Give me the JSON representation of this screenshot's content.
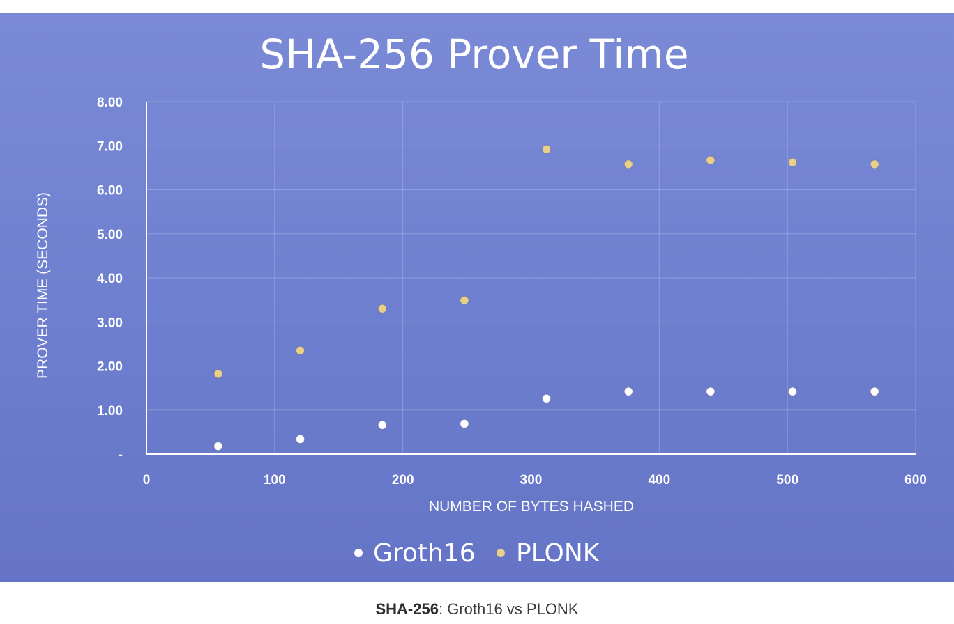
{
  "chart_data": {
    "type": "scatter",
    "title": "SHA-256 Prover Time",
    "xlabel": "NUMBER OF BYTES HASHED",
    "ylabel": "PROVER TIME (SECONDS)",
    "xlim": [
      0,
      600
    ],
    "ylim": [
      0,
      8
    ],
    "x_ticks": [
      "0",
      "100",
      "200",
      "300",
      "400",
      "500",
      "600"
    ],
    "y_ticks": [
      "-",
      "1.00",
      "2.00",
      "3.00",
      "4.00",
      "5.00",
      "6.00",
      "7.00",
      "8.00"
    ],
    "grid": true,
    "legend_position": "bottom",
    "series": [
      {
        "name": "Groth16",
        "color": "#ffffff",
        "x": [
          56,
          120,
          184,
          248,
          312,
          376,
          440,
          504,
          568
        ],
        "y": [
          0.18,
          0.34,
          0.66,
          0.69,
          1.26,
          1.42,
          1.42,
          1.42,
          1.42
        ]
      },
      {
        "name": "PLONK",
        "color": "#e8cf8a",
        "x": [
          56,
          120,
          184,
          248,
          312,
          376,
          440,
          504,
          568
        ],
        "y": [
          1.82,
          2.35,
          3.3,
          3.49,
          6.92,
          6.58,
          6.67,
          6.62,
          6.58
        ]
      }
    ]
  },
  "caption": {
    "bold": "SHA-256",
    "rest": ": Groth16 vs PLONK"
  }
}
